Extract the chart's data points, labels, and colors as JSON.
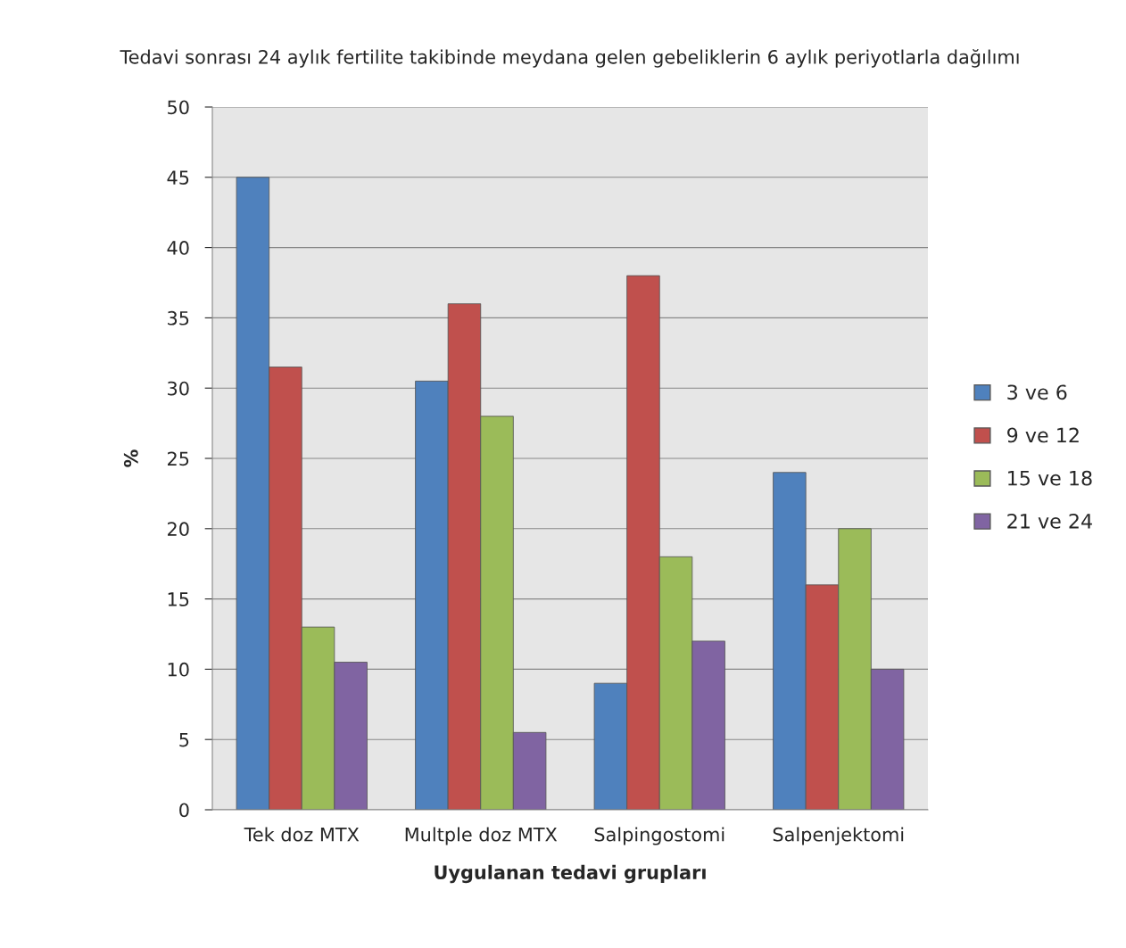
{
  "chart_data": {
    "type": "bar",
    "title": "Tedavi sonrası 24 aylık fertilite takibinde meydana gelen gebeliklerin 6 aylık periyotlarla dağılımı",
    "xlabel": "Uygulanan tedavi grupları",
    "ylabel": "%",
    "categories": [
      "Tek doz MTX",
      "Multple doz MTX",
      "Salpingostomi",
      "Salpenjektomi"
    ],
    "series": [
      {
        "name": "3 ve 6",
        "color": "#4f81bd",
        "values": [
          45,
          30.5,
          9,
          24
        ]
      },
      {
        "name": "9 ve 12",
        "color": "#c0504d",
        "values": [
          31.5,
          36,
          38,
          16
        ]
      },
      {
        "name": "15 ve 18",
        "color": "#9bbb59",
        "values": [
          13,
          28,
          18,
          20
        ]
      },
      {
        "name": "21 ve 24",
        "color": "#8064a2",
        "values": [
          10.5,
          5.5,
          12,
          10
        ]
      }
    ],
    "ylim": [
      0,
      50
    ],
    "yticks": [
      0,
      5,
      10,
      15,
      20,
      25,
      30,
      35,
      40,
      45,
      50
    ],
    "grid": "y",
    "legend": "right"
  }
}
